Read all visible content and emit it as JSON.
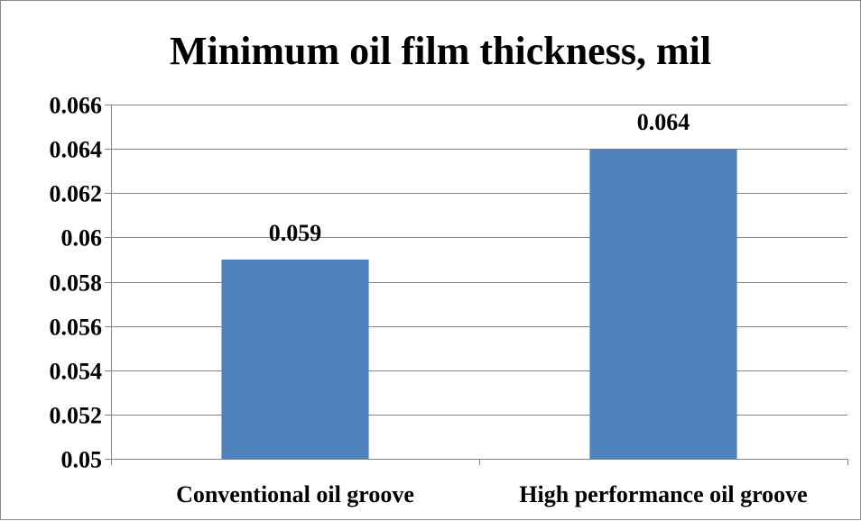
{
  "chart_data": {
    "type": "bar",
    "title": "Minimum oil film thickness, mil",
    "categories": [
      "Conventional oil groove",
      "High performance oil groove"
    ],
    "values": [
      0.059,
      0.064
    ],
    "data_labels": [
      "0.059",
      "0.064"
    ],
    "xlabel": "",
    "ylabel": "",
    "ylim": [
      0.05,
      0.066
    ],
    "yticks": [
      0.05,
      0.052,
      0.054,
      0.056,
      0.058,
      0.06,
      0.062,
      0.064,
      0.066
    ],
    "ytick_labels": [
      "0.05",
      "0.052",
      "0.054",
      "0.056",
      "0.058",
      "0.06",
      "0.062",
      "0.064",
      "0.066"
    ],
    "grid": true,
    "legend": "none",
    "bar_color": "#4f81bd",
    "grid_color": "#868686"
  }
}
